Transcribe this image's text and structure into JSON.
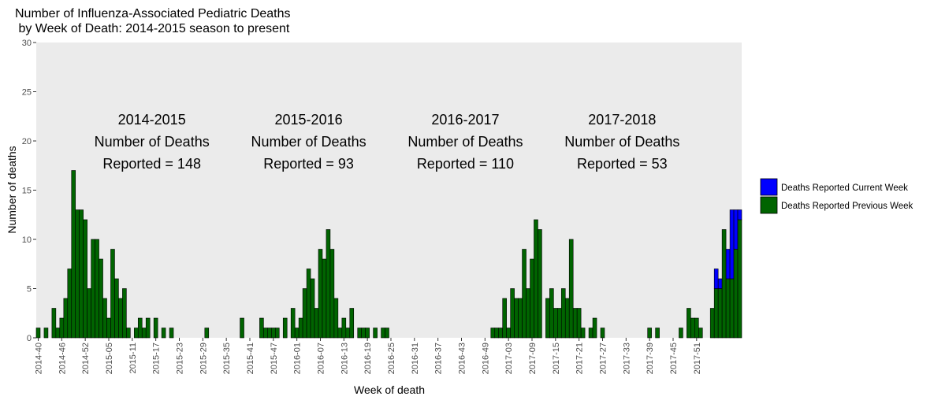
{
  "chart_data": {
    "type": "bar",
    "stacked": true,
    "title": "Number of Influenza-Associated Pediatric Deaths",
    "subtitle": " by Week of Death: 2014-2015 season to present",
    "xlabel": "Week of death",
    "ylabel": "Number of deaths",
    "ylim": [
      0,
      30
    ],
    "yticks": [
      0,
      5,
      10,
      15,
      20,
      25,
      30
    ],
    "grid": false,
    "panel_background": "#ebebeb",
    "legend_position": "right",
    "x_start": "2014-40",
    "x_tick_labels": [
      "2014-40",
      "2014-46",
      "2014-52",
      "2015-05",
      "2015-11",
      "2015-17",
      "2015-23",
      "2015-29",
      "2015-35",
      "2015-41",
      "2015-47",
      "2016-01",
      "2016-07",
      "2016-13",
      "2016-19",
      "2016-25",
      "2016-31",
      "2016-37",
      "2016-43",
      "2016-49",
      "2017-03",
      "2017-09",
      "2017-15",
      "2017-21",
      "2017-27",
      "2017-33",
      "2017-39",
      "2017-45",
      "2017-51"
    ],
    "tick_every": 6,
    "series": [
      {
        "name": "Deaths Reported Previous Week",
        "color": "#006400",
        "values": [
          1,
          0,
          1,
          0,
          3,
          1,
          2,
          4,
          7,
          17,
          13,
          13,
          12,
          5,
          10,
          10,
          8,
          4,
          2,
          9,
          6,
          4,
          5,
          1,
          0,
          1,
          2,
          1,
          2,
          0,
          2,
          0,
          1,
          0,
          1,
          0,
          0,
          0,
          0,
          0,
          0,
          0,
          0,
          1,
          0,
          0,
          0,
          0,
          0,
          0,
          0,
          0,
          2,
          0,
          0,
          0,
          0,
          2,
          1,
          1,
          1,
          1,
          0,
          2,
          0,
          3,
          1,
          2,
          5,
          7,
          6,
          3,
          9,
          8,
          11,
          9,
          4,
          1,
          2,
          1,
          3,
          0,
          1,
          1,
          1,
          0,
          1,
          0,
          1,
          1,
          0,
          0,
          0,
          0,
          0,
          0,
          0,
          0,
          0,
          0,
          0,
          0,
          0,
          0,
          0,
          0,
          0,
          0,
          0,
          0,
          0,
          0,
          0,
          0,
          0,
          0,
          1,
          1,
          1,
          4,
          1,
          5,
          4,
          4,
          9,
          5,
          8,
          12,
          11,
          0,
          4,
          5,
          3,
          3,
          5,
          4,
          10,
          3,
          3,
          1,
          0,
          1,
          2,
          0,
          1,
          0,
          0,
          0,
          0,
          0,
          0,
          0,
          0,
          0,
          0,
          0,
          1,
          0,
          1,
          0,
          0,
          0,
          0,
          0,
          1,
          0,
          3,
          2,
          2,
          1,
          0,
          0,
          3,
          5,
          5,
          11,
          6,
          6,
          9,
          12
        ]
      },
      {
        "name": "Deaths Reported Current Week",
        "color": "#0000ff",
        "values": [
          0,
          0,
          0,
          0,
          0,
          0,
          0,
          0,
          0,
          0,
          0,
          0,
          0,
          0,
          0,
          0,
          0,
          0,
          0,
          0,
          0,
          0,
          0,
          0,
          0,
          0,
          0,
          0,
          0,
          0,
          0,
          0,
          0,
          0,
          0,
          0,
          0,
          0,
          0,
          0,
          0,
          0,
          0,
          0,
          0,
          0,
          0,
          0,
          0,
          0,
          0,
          0,
          0,
          0,
          0,
          0,
          0,
          0,
          0,
          0,
          0,
          0,
          0,
          0,
          0,
          0,
          0,
          0,
          0,
          0,
          0,
          0,
          0,
          0,
          0,
          0,
          0,
          0,
          0,
          0,
          0,
          0,
          0,
          0,
          0,
          0,
          0,
          0,
          0,
          0,
          0,
          0,
          0,
          0,
          0,
          0,
          0,
          0,
          0,
          0,
          0,
          0,
          0,
          0,
          0,
          0,
          0,
          0,
          0,
          0,
          0,
          0,
          0,
          0,
          0,
          0,
          0,
          0,
          0,
          0,
          0,
          0,
          0,
          0,
          0,
          0,
          0,
          0,
          0,
          0,
          0,
          0,
          0,
          0,
          0,
          0,
          0,
          0,
          0,
          0,
          0,
          0,
          0,
          0,
          0,
          0,
          0,
          0,
          0,
          0,
          0,
          0,
          0,
          0,
          0,
          0,
          0,
          0,
          0,
          0,
          0,
          0,
          0,
          0,
          0,
          0,
          0,
          0,
          0,
          0,
          0,
          0,
          0,
          2,
          1,
          0,
          3,
          7,
          4,
          1
        ]
      }
    ],
    "annotations": [
      {
        "season": "2014-2015",
        "line2": "Number of Deaths",
        "line3": "Reported = 148",
        "center_index": 29
      },
      {
        "season": "2015-2016",
        "line2": "Number of Deaths",
        "line3": "Reported = 93",
        "center_index": 69
      },
      {
        "season": "2016-2017",
        "line2": "Number of Deaths",
        "line3": "Reported = 110",
        "center_index": 109
      },
      {
        "season": "2017-2018",
        "line2": "Number of Deaths",
        "line3": "Reported = 53",
        "center_index": 149
      }
    ]
  }
}
